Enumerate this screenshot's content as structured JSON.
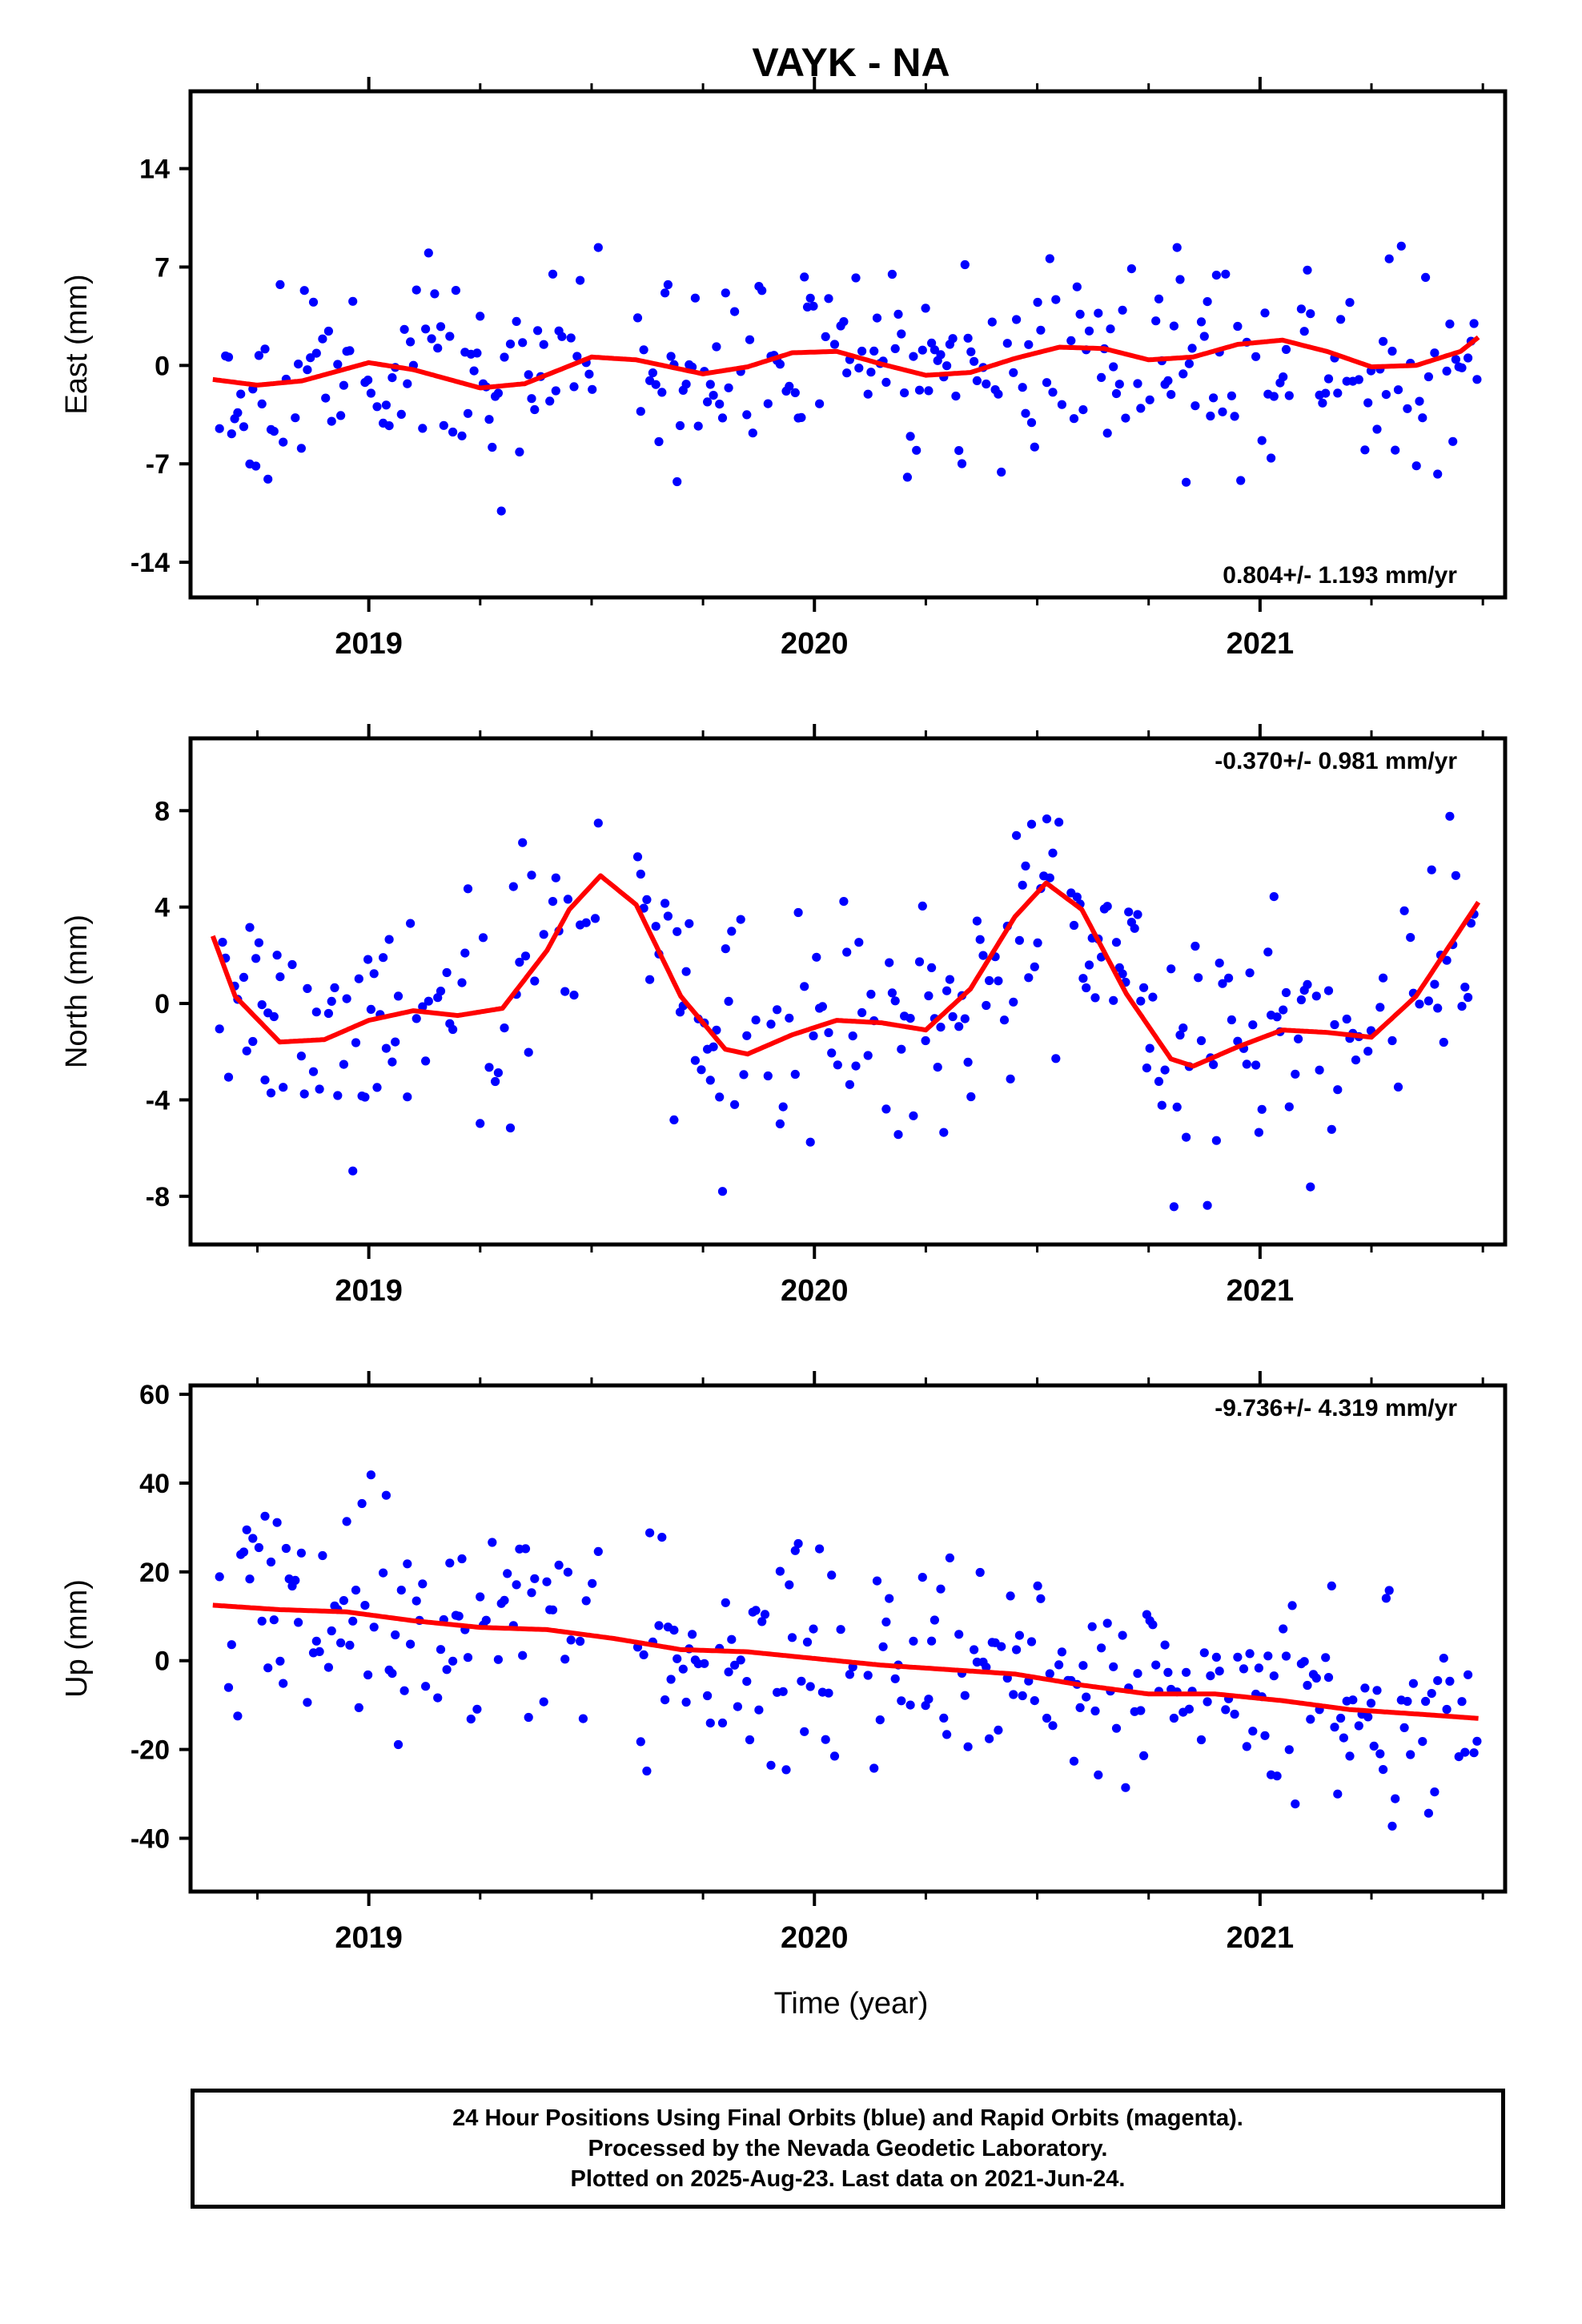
{
  "title": "VAYK - NA",
  "xlabel": "Time (year)",
  "caption": {
    "line1": "24 Hour Positions Using Final Orbits (blue) and Rapid Orbits (magenta).",
    "line2": "Processed by the Nevada Geodetic Laboratory.",
    "line3": "Plotted on 2025-Aug-23. Last data on 2021-Jun-24."
  },
  "colors": {
    "points": "#0000ff",
    "fit": "#ff0000",
    "axis": "#000000"
  },
  "chart_data": [
    {
      "type": "scatter",
      "component": "East",
      "ylabel": "East (mm)",
      "rate_text": "0.804+/- 1.193 mm/yr",
      "rate_position": "bottom-right",
      "xlim": [
        2018.6,
        2021.55
      ],
      "ylim": [
        -16.5,
        19.5
      ],
      "yticks": [
        -14,
        -7,
        0,
        7,
        14
      ],
      "xticks": [
        2019,
        2020,
        2021
      ],
      "fit": {
        "x": [
          2018.65,
          2018.75,
          2018.85,
          2019.0,
          2019.1,
          2019.25,
          2019.35,
          2019.5,
          2019.6,
          2019.75,
          2019.85,
          2019.95,
          2020.05,
          2020.15,
          2020.25,
          2020.35,
          2020.45,
          2020.55,
          2020.65,
          2020.75,
          2020.85,
          2020.95,
          2021.05,
          2021.15,
          2021.25,
          2021.35,
          2021.45,
          2021.49
        ],
        "y": [
          -1.0,
          -1.4,
          -1.1,
          0.2,
          -0.3,
          -1.6,
          -1.3,
          0.6,
          0.4,
          -0.6,
          -0.1,
          0.9,
          1.0,
          0.1,
          -0.7,
          -0.5,
          0.5,
          1.3,
          1.2,
          0.4,
          0.6,
          1.5,
          1.8,
          1.0,
          -0.1,
          0.0,
          1.0,
          2.0
        ]
      },
      "series": [
        {
          "name": "Final Orbits",
          "noise": 3.6,
          "seed": 11
        }
      ]
    },
    {
      "type": "scatter",
      "component": "North",
      "ylabel": "North (mm)",
      "rate_text": "-0.370+/- 0.981 mm/yr",
      "rate_position": "top-right",
      "xlim": [
        2018.6,
        2021.55
      ],
      "ylim": [
        -10,
        11
      ],
      "yticks": [
        -8,
        -4,
        0,
        4,
        8
      ],
      "xticks": [
        2019,
        2020,
        2021
      ],
      "fit": {
        "x": [
          2018.65,
          2018.7,
          2018.8,
          2018.9,
          2019.0,
          2019.1,
          2019.2,
          2019.3,
          2019.4,
          2019.45,
          2019.52,
          2019.6,
          2019.7,
          2019.8,
          2019.85,
          2019.95,
          2020.05,
          2020.15,
          2020.25,
          2020.35,
          2020.45,
          2020.52,
          2020.6,
          2020.7,
          2020.8,
          2020.85,
          2020.95,
          2021.05,
          2021.15,
          2021.25,
          2021.35,
          2021.49
        ],
        "y": [
          2.8,
          0.3,
          -1.6,
          -1.5,
          -0.7,
          -0.3,
          -0.5,
          -0.2,
          2.2,
          3.9,
          5.3,
          4.1,
          0.3,
          -1.9,
          -2.1,
          -1.3,
          -0.7,
          -0.8,
          -1.1,
          0.6,
          3.6,
          5.0,
          3.9,
          0.4,
          -2.3,
          -2.6,
          -1.8,
          -1.1,
          -1.2,
          -1.4,
          0.3,
          4.2
        ]
      },
      "series": [
        {
          "name": "Final Orbits",
          "noise": 2.4,
          "seed": 23
        }
      ]
    },
    {
      "type": "scatter",
      "component": "Up",
      "ylabel": "Up (mm)",
      "rate_text": "-9.736+/- 4.319 mm/yr",
      "rate_position": "top-right",
      "xlim": [
        2018.6,
        2021.55
      ],
      "ylim": [
        -52,
        62
      ],
      "yticks": [
        -40,
        -20,
        0,
        20,
        40,
        60
      ],
      "xticks": [
        2019,
        2020,
        2021
      ],
      "fit": {
        "x": [
          2018.65,
          2018.8,
          2018.95,
          2019.1,
          2019.25,
          2019.4,
          2019.55,
          2019.7,
          2019.85,
          2020.0,
          2020.15,
          2020.3,
          2020.45,
          2020.6,
          2020.75,
          2020.9,
          2021.05,
          2021.2,
          2021.35,
          2021.49
        ],
        "y": [
          12.5,
          11.5,
          11.0,
          9.0,
          7.5,
          7.0,
          5.0,
          2.5,
          2.0,
          0.5,
          -1.0,
          -2.0,
          -3.0,
          -5.5,
          -7.5,
          -7.5,
          -9.0,
          -11.0,
          -12.0,
          -13.0
        ]
      },
      "series": [
        {
          "name": "Final Orbits",
          "noise": 12.0,
          "seed": 37
        }
      ]
    }
  ]
}
